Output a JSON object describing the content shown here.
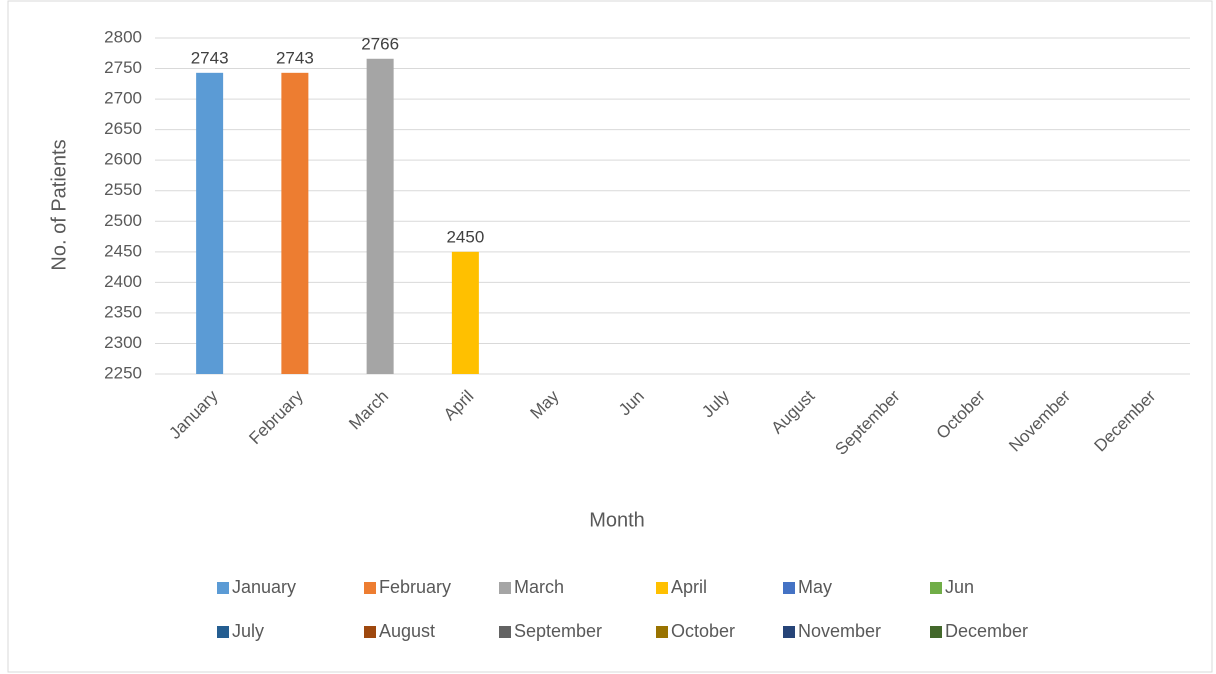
{
  "chart_data": {
    "type": "bar",
    "categories": [
      "January",
      "February",
      "March",
      "April",
      "May",
      "Jun",
      "July",
      "August",
      "September",
      "October",
      "November",
      "December"
    ],
    "values": [
      2743,
      2743,
      2766,
      2450,
      null,
      null,
      null,
      null,
      null,
      null,
      null,
      null
    ],
    "colors": [
      "#5b9bd5",
      "#ed7d31",
      "#a5a5a5",
      "#ffc000",
      "#4472c4",
      "#70ad47",
      "#255e91",
      "#9e480e",
      "#636363",
      "#997300",
      "#264478",
      "#43682b"
    ],
    "x_label": "Month",
    "y_label": "No. of Patients",
    "ylim": [
      2250,
      2800
    ],
    "yticks": [
      2250,
      2300,
      2350,
      2400,
      2450,
      2500,
      2550,
      2600,
      2650,
      2700,
      2750,
      2800
    ],
    "grid": true,
    "legend": "bottom"
  }
}
